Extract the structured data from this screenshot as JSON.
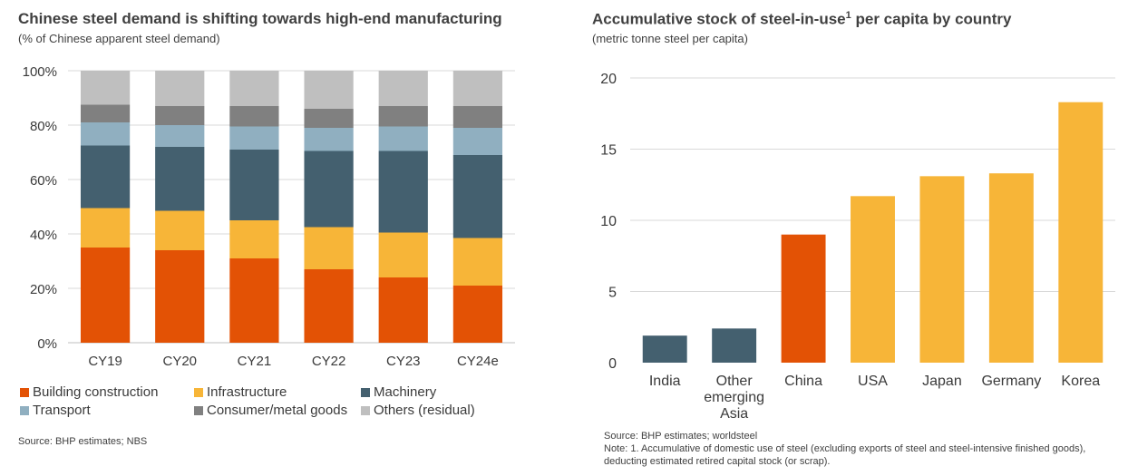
{
  "chart_data": [
    {
      "type": "bar",
      "stacked": true,
      "title": "Chinese steel demand is shifting towards high-end manufacturing",
      "subtitle": "(% of Chinese apparent steel demand)",
      "categories": [
        "CY19",
        "CY20",
        "CY21",
        "CY22",
        "CY23",
        "CY24e"
      ],
      "ylim": [
        0,
        100
      ],
      "yticks": [
        "0%",
        "20%",
        "40%",
        "60%",
        "80%",
        "100%"
      ],
      "grid": true,
      "legend_position": "bottom",
      "series": [
        {
          "name": "Building construction",
          "color": "#e35205",
          "values": [
            35,
            34,
            31,
            27,
            24,
            21
          ]
        },
        {
          "name": "Infrastructure",
          "color": "#f7b538",
          "values": [
            14.5,
            14.5,
            14,
            15.5,
            16.5,
            17.5
          ]
        },
        {
          "name": "Machinery",
          "color": "#44606f",
          "values": [
            23,
            23.5,
            26,
            28,
            30,
            30.5
          ]
        },
        {
          "name": "Transport",
          "color": "#90afc0",
          "values": [
            8.5,
            8,
            8.5,
            8.5,
            9,
            10
          ]
        },
        {
          "name": "Consumer/metal goods",
          "color": "#808080",
          "values": [
            6.5,
            7,
            7.5,
            7,
            7.5,
            8
          ]
        },
        {
          "name": "Others (residual)",
          "color": "#bfbfbf",
          "values": [
            12.5,
            13,
            13,
            14,
            13,
            13
          ]
        }
      ],
      "source": "Source: BHP estimates; NBS"
    },
    {
      "type": "bar",
      "title": "Accumulative stock of steel-in-use",
      "title_sup": "1",
      "title_rest": " per capita by country",
      "subtitle": "(metric tonne steel per capita)",
      "categories": [
        [
          "India"
        ],
        [
          "Other",
          "emerging",
          "Asia"
        ],
        [
          "China"
        ],
        [
          "USA"
        ],
        [
          "Japan"
        ],
        [
          "Germany"
        ],
        [
          "Korea"
        ]
      ],
      "values": [
        1.9,
        2.4,
        9.0,
        11.7,
        13.1,
        13.3,
        18.3
      ],
      "colors": [
        "#44606f",
        "#44606f",
        "#e35205",
        "#f7b538",
        "#f7b538",
        "#f7b538",
        "#f7b538"
      ],
      "ylim": [
        0,
        20
      ],
      "yticks": [
        "0",
        "5",
        "10",
        "15",
        "20"
      ],
      "grid": true,
      "source": "Source: BHP estimates; worldsteel",
      "note": "Note: 1. Accumulative of domestic use of steel (excluding exports of steel and steel-intensive finished goods), deducting estimated retired capital stock (or scrap)."
    }
  ]
}
